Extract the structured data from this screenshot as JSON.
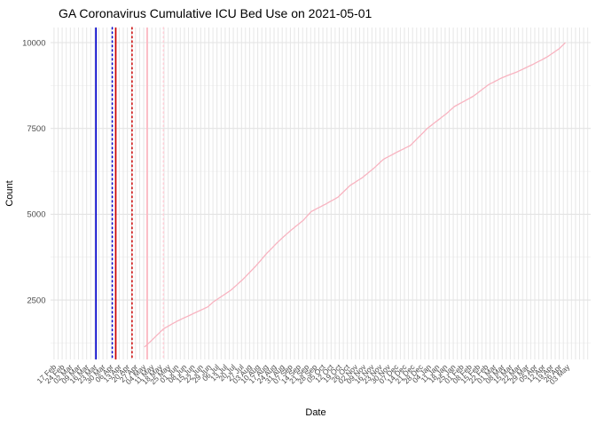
{
  "chart_data": {
    "type": "line",
    "title": "GA Coronavirus Cumulative ICU Bed Use on 2021-05-01",
    "xlabel": "Date",
    "ylabel": "Count",
    "y_ticks": [
      2500,
      5000,
      7500,
      10000
    ],
    "y_minor_gridlines": [
      1250,
      3750,
      6250,
      8750
    ],
    "ylim": [
      770,
      10440
    ],
    "x_domain": [
      "2020-02-14",
      "2021-05-23"
    ],
    "x_tick_start": "2020-02-17",
    "x_tick_interval_days": 7,
    "x_tick_labels": [
      "17 Feb",
      "24 Feb",
      "02 Mar",
      "09 Mar",
      "16 Mar",
      "23 Mar",
      "30 Mar",
      "06 Apr",
      "13 Apr",
      "20 Apr",
      "27 Apr",
      "04 May",
      "11 May",
      "18 May",
      "25 May",
      "01 Jun",
      "08 Jun",
      "15 Jun",
      "22 Jun",
      "29 Jun",
      "06 Jul",
      "13 Jul",
      "20 Jul",
      "27 Jul",
      "03 Aug",
      "10 Aug",
      "17 Aug",
      "24 Aug",
      "31 Aug",
      "07 Sep",
      "14 Sep",
      "21 Sep",
      "28 Sep",
      "05 Oct",
      "12 Oct",
      "19 Oct",
      "26 Oct",
      "02 Nov",
      "09 Nov",
      "16 Nov",
      "23 Nov",
      "30 Nov",
      "07 Dec",
      "14 Dec",
      "21 Dec",
      "28 Dec",
      "04 Jan",
      "11 Jan",
      "18 Jan",
      "25 Jan",
      "01 Feb",
      "08 Feb",
      "15 Feb",
      "22 Feb",
      "01 Mar",
      "08 Mar",
      "15 Mar",
      "22 Mar",
      "29 Mar",
      "05 Apr",
      "12 Apr",
      "19 Apr",
      "26 Apr",
      "03 May"
    ],
    "grid": {
      "background": "#ffffff",
      "vertical_color": "#e5e5e5",
      "horizontal_major_color": "#e3e3e3",
      "horizontal_minor_color": "#f0f0f0",
      "vertical_spacing": "half-week minor + weekly major"
    },
    "vlines": [
      {
        "date": "2020-03-24",
        "style": "solid",
        "color": "#0000cd"
      },
      {
        "date": "2020-04-07",
        "style": "dotted",
        "color": "#0000cd"
      },
      {
        "date": "2020-04-10",
        "style": "solid",
        "color": "#cc0000"
      },
      {
        "date": "2020-04-24",
        "style": "dotted",
        "color": "#cc0000"
      },
      {
        "date": "2020-05-07",
        "style": "solid",
        "color": "#ffb6c1"
      },
      {
        "date": "2020-05-21",
        "style": "dotted",
        "color": "#ffd0d8"
      }
    ],
    "series": [
      {
        "name": "cumulative-icu-bed-use",
        "color": "#f8b3c0",
        "points": [
          [
            "2020-05-05",
            1140
          ],
          [
            "2020-05-11",
            1330
          ],
          [
            "2020-05-21",
            1660
          ],
          [
            "2020-06-02",
            1890
          ],
          [
            "2020-06-28",
            2300
          ],
          [
            "2020-07-03",
            2450
          ],
          [
            "2020-07-18",
            2790
          ],
          [
            "2020-07-28",
            3095
          ],
          [
            "2020-08-08",
            3480
          ],
          [
            "2020-08-18",
            3870
          ],
          [
            "2020-08-28",
            4215
          ],
          [
            "2020-09-07",
            4520
          ],
          [
            "2020-09-18",
            4820
          ],
          [
            "2020-09-25",
            5080
          ],
          [
            "2020-10-07",
            5290
          ],
          [
            "2020-10-18",
            5500
          ],
          [
            "2020-10-28",
            5830
          ],
          [
            "2020-11-08",
            6070
          ],
          [
            "2020-11-18",
            6350
          ],
          [
            "2020-11-26",
            6600
          ],
          [
            "2020-12-07",
            6800
          ],
          [
            "2020-12-19",
            7000
          ],
          [
            "2021-01-03",
            7510
          ],
          [
            "2021-01-11",
            7720
          ],
          [
            "2021-01-19",
            7930
          ],
          [
            "2021-01-26",
            8140
          ],
          [
            "2021-02-11",
            8435
          ],
          [
            "2021-02-24",
            8770
          ],
          [
            "2021-03-08",
            8980
          ],
          [
            "2021-03-21",
            9150
          ],
          [
            "2021-04-03",
            9360
          ],
          [
            "2021-04-15",
            9570
          ],
          [
            "2021-04-26",
            9825
          ],
          [
            "2021-05-01",
            9990
          ]
        ]
      }
    ],
    "legend": "none"
  }
}
